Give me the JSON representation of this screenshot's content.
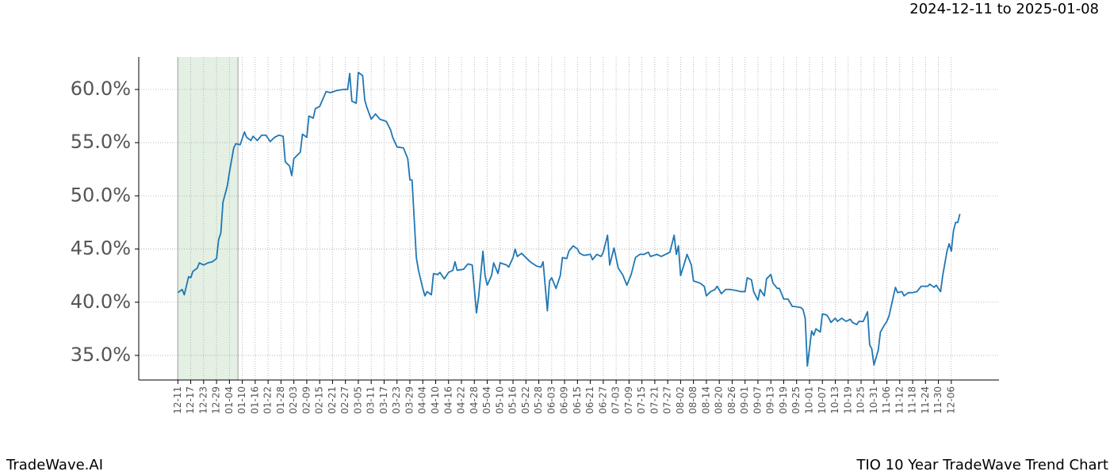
{
  "chart_data": {
    "type": "line",
    "title": "2024-12-11 to 2025-01-08",
    "footer_left": "TradeWave.AI",
    "footer_right": "TIO 10 Year TradeWave Trend Chart",
    "color": "#1f77b4",
    "grid": true,
    "span": [
      "12-11",
      "01-08"
    ],
    "span_color": "#e3f0e3",
    "ylim": [
      32.69,
      63.05
    ],
    "yticks": [
      {
        "value": 35,
        "label": "35.0%"
      },
      {
        "value": 40,
        "label": "40.0%"
      },
      {
        "value": 45,
        "label": "45.0%"
      },
      {
        "value": 50,
        "label": "50.0%"
      },
      {
        "value": 55,
        "label": "55.0%"
      },
      {
        "value": 60,
        "label": "60.0%"
      }
    ],
    "xticks": [
      "12-11",
      "12-17",
      "12-23",
      "12-29",
      "01-04",
      "01-10",
      "01-16",
      "01-22",
      "01-28",
      "02-03",
      "02-09",
      "02-15",
      "02-21",
      "02-27",
      "03-05",
      "03-11",
      "03-17",
      "03-23",
      "03-29",
      "04-04",
      "04-10",
      "04-16",
      "04-22",
      "04-28",
      "05-04",
      "05-10",
      "05-16",
      "05-22",
      "05-28",
      "06-03",
      "06-09",
      "06-15",
      "06-21",
      "06-27",
      "07-03",
      "07-09",
      "07-15",
      "07-21",
      "07-27",
      "08-02",
      "08-08",
      "08-14",
      "08-20",
      "08-26",
      "09-01",
      "09-07",
      "09-13",
      "09-19",
      "09-25",
      "10-01",
      "10-07",
      "10-13",
      "10-19",
      "10-25",
      "10-31",
      "11-06",
      "11-12",
      "11-18",
      "11-24",
      "11-30",
      "12-06"
    ],
    "x": [
      "12-11",
      "12-13",
      "12-14",
      "12-16",
      "12-17",
      "12-18",
      "12-20",
      "12-21",
      "12-23",
      "12-25",
      "12-27",
      "12-29",
      "12-30",
      "12-31",
      "01-01",
      "01-03",
      "01-04",
      "01-06",
      "01-07",
      "01-09",
      "01-11",
      "01-12",
      "01-14",
      "01-15",
      "01-17",
      "01-19",
      "01-21",
      "01-23",
      "01-25",
      "01-27",
      "01-29",
      "01-30",
      "02-01",
      "02-02",
      "02-03",
      "02-06",
      "02-07",
      "02-09",
      "02-10",
      "02-12",
      "02-13",
      "02-15",
      "02-18",
      "02-20",
      "02-23",
      "02-26",
      "02-28",
      "03-01",
      "03-02",
      "03-04",
      "03-05",
      "03-07",
      "03-08",
      "03-09",
      "03-11",
      "03-13",
      "03-15",
      "03-18",
      "03-20",
      "03-21",
      "03-23",
      "03-26",
      "03-28",
      "03-29",
      "03-30",
      "04-01",
      "04-02",
      "04-04",
      "04-05",
      "04-06",
      "04-08",
      "04-09",
      "04-11",
      "04-12",
      "04-14",
      "04-16",
      "04-18",
      "04-19",
      "04-20",
      "04-23",
      "04-25",
      "04-27",
      "04-29",
      "04-30",
      "05-02",
      "05-03",
      "05-04",
      "05-06",
      "05-07",
      "05-09",
      "05-10",
      "05-13",
      "05-14",
      "05-16",
      "05-17",
      "05-18",
      "05-20",
      "05-22",
      "05-24",
      "05-27",
      "05-29",
      "05-30",
      "06-01",
      "06-02",
      "06-03",
      "06-05",
      "06-07",
      "06-08",
      "06-10",
      "06-11",
      "06-13",
      "06-15",
      "06-16",
      "06-18",
      "06-21",
      "06-22",
      "06-24",
      "06-26",
      "06-27",
      "06-29",
      "06-30",
      "07-02",
      "07-04",
      "07-06",
      "07-08",
      "07-10",
      "07-12",
      "07-14",
      "07-16",
      "07-18",
      "07-19",
      "07-22",
      "07-24",
      "07-26",
      "07-28",
      "07-30",
      "07-31",
      "08-01",
      "08-02",
      "08-04",
      "08-05",
      "08-07",
      "08-08",
      "08-11",
      "08-13",
      "08-14",
      "08-16",
      "08-18",
      "08-19",
      "08-21",
      "08-23",
      "08-25",
      "08-28",
      "08-30",
      "09-01",
      "09-02",
      "09-04",
      "09-05",
      "09-07",
      "09-08",
      "09-10",
      "09-11",
      "09-13",
      "09-14",
      "09-16",
      "09-17",
      "09-19",
      "09-21",
      "09-23",
      "09-24",
      "09-27",
      "09-28",
      "09-29",
      "09-30",
      "10-02",
      "10-03",
      "10-04",
      "10-06",
      "10-07",
      "10-09",
      "10-10",
      "10-11",
      "10-13",
      "10-14",
      "10-16",
      "10-18",
      "10-20",
      "10-21",
      "10-23",
      "10-24",
      "10-26",
      "10-28",
      "10-29",
      "10-30",
      "10-31",
      "11-02",
      "11-03",
      "11-05",
      "11-06",
      "11-07",
      "11-08",
      "11-10",
      "11-11",
      "11-13",
      "11-14",
      "11-16",
      "11-18",
      "11-20",
      "11-22",
      "11-25",
      "11-26",
      "11-28",
      "11-29",
      "12-01",
      "12-02",
      "12-04",
      "12-05",
      "12-06",
      "12-07",
      "12-08",
      "12-09",
      "12-10"
    ],
    "values": [
      40.9,
      41.2,
      40.7,
      42.4,
      42.3,
      42.9,
      43.2,
      43.7,
      43.5,
      43.7,
      43.8,
      44.1,
      45.9,
      46.5,
      49.4,
      50.9,
      52.2,
      54.5,
      54.9,
      54.8,
      56.0,
      55.5,
      55.2,
      55.6,
      55.2,
      55.7,
      55.7,
      55.1,
      55.5,
      55.7,
      55.6,
      53.2,
      52.8,
      51.9,
      53.5,
      54.1,
      55.8,
      55.5,
      57.5,
      57.3,
      58.2,
      58.4,
      59.8,
      59.7,
      59.9,
      60.0,
      60.0,
      61.5,
      58.9,
      58.7,
      61.6,
      61.3,
      59.0,
      58.3,
      57.2,
      57.7,
      57.2,
      57.0,
      56.2,
      55.5,
      54.6,
      54.5,
      53.5,
      51.5,
      51.5,
      44.2,
      43.0,
      41.3,
      40.6,
      41.0,
      40.7,
      42.7,
      42.6,
      42.8,
      42.2,
      42.8,
      43.0,
      43.8,
      43.0,
      43.1,
      43.6,
      43.5,
      39.0,
      40.5,
      44.8,
      42.5,
      41.6,
      42.5,
      43.7,
      42.7,
      43.7,
      43.5,
      43.3,
      44.2,
      45.0,
      44.3,
      44.6,
      44.2,
      43.8,
      43.4,
      43.3,
      43.8,
      39.2,
      42.0,
      42.3,
      41.3,
      42.5,
      44.2,
      44.1,
      44.8,
      45.3,
      45.0,
      44.6,
      44.4,
      44.5,
      44.0,
      44.5,
      44.3,
      44.7,
      46.3,
      43.5,
      45.1,
      43.2,
      42.6,
      41.6,
      42.6,
      44.2,
      44.5,
      44.5,
      44.7,
      44.3,
      44.5,
      44.3,
      44.5,
      44.7,
      46.3,
      44.5,
      45.3,
      42.5,
      43.8,
      44.5,
      43.5,
      42.0,
      41.8,
      41.5,
      40.6,
      41.0,
      41.2,
      41.5,
      40.8,
      41.2,
      41.2,
      41.1,
      41.0,
      41.0,
      42.3,
      42.1,
      41.0,
      40.2,
      41.2,
      40.6,
      42.2,
      42.6,
      41.8,
      41.3,
      41.3,
      40.3,
      40.3,
      39.6,
      39.6,
      39.5,
      39.3,
      38.5,
      34.0,
      37.3,
      36.9,
      37.5,
      37.2,
      38.9,
      38.8,
      38.5,
      38.1,
      38.5,
      38.2,
      38.5,
      38.2,
      38.4,
      38.1,
      37.9,
      38.2,
      38.2,
      39.1,
      36.0,
      35.6,
      34.1,
      35.5,
      37.2,
      37.9,
      38.2,
      38.7,
      39.6,
      41.4,
      40.9,
      41.0,
      40.6,
      40.9,
      40.9,
      41.0,
      41.5,
      41.5,
      41.7,
      41.4,
      41.6,
      41.0,
      42.5,
      44.8,
      45.5,
      44.8,
      46.7,
      47.5,
      47.5,
      48.3
    ]
  }
}
